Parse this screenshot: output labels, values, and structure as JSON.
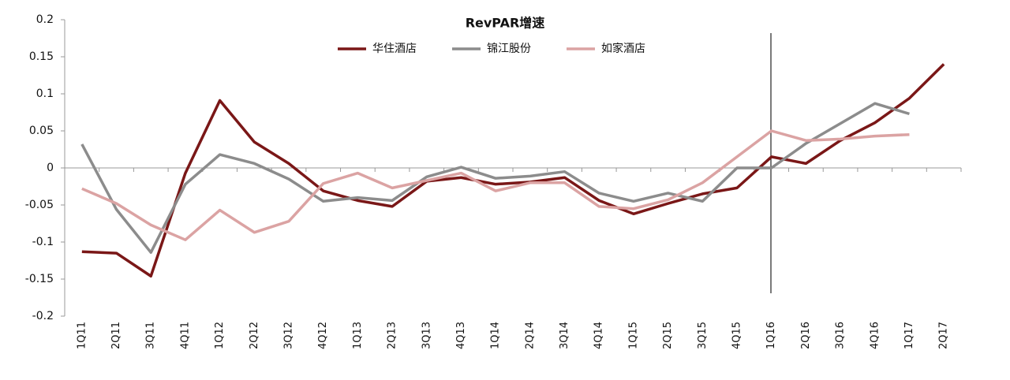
{
  "chart_data": {
    "type": "line",
    "title": "RevPAR增速",
    "categories": [
      "1Q11",
      "2Q11",
      "3Q11",
      "4Q11",
      "1Q12",
      "2Q12",
      "3Q12",
      "4Q12",
      "1Q13",
      "2Q13",
      "3Q13",
      "4Q13",
      "1Q14",
      "2Q14",
      "3Q14",
      "4Q14",
      "1Q15",
      "2Q15",
      "3Q15",
      "4Q15",
      "1Q16",
      "2Q16",
      "3Q16",
      "4Q16",
      "1Q17",
      "2Q17"
    ],
    "series": [
      {
        "name": "华住酒店",
        "color": "#7a1717",
        "values": [
          -0.113,
          -0.115,
          -0.146,
          -0.007,
          0.091,
          0.035,
          0.006,
          -0.031,
          -0.044,
          -0.052,
          -0.018,
          -0.013,
          -0.022,
          -0.019,
          -0.013,
          -0.044,
          -0.062,
          -0.048,
          -0.035,
          -0.027,
          0.015,
          0.006,
          0.037,
          0.061,
          0.094,
          0.14
        ]
      },
      {
        "name": "锦江股份",
        "color": "#8c8c8c",
        "values": [
          0.032,
          -0.056,
          -0.114,
          -0.022,
          0.018,
          0.006,
          -0.015,
          -0.045,
          -0.04,
          -0.044,
          -0.012,
          0.001,
          -0.014,
          -0.011,
          -0.005,
          -0.034,
          -0.045,
          -0.034,
          -0.045,
          0,
          0,
          0.033,
          0.06,
          0.087,
          0.073,
          null
        ]
      },
      {
        "name": "如家酒店",
        "color": "#dba3a3",
        "values": [
          -0.028,
          -0.048,
          -0.077,
          -0.097,
          -0.057,
          -0.087,
          -0.072,
          -0.021,
          -0.007,
          -0.027,
          -0.017,
          -0.007,
          -0.031,
          -0.02,
          -0.02,
          -0.052,
          -0.055,
          -0.043,
          -0.02,
          0.015,
          0.05,
          0.037,
          0.039,
          0.043,
          0.045,
          null
        ]
      }
    ],
    "ylim": [
      -0.2,
      0.2
    ],
    "yticks": [
      -0.2,
      -0.15,
      -0.1,
      -0.05,
      0,
      0.05,
      0.1,
      0.15,
      0.2
    ]
  }
}
